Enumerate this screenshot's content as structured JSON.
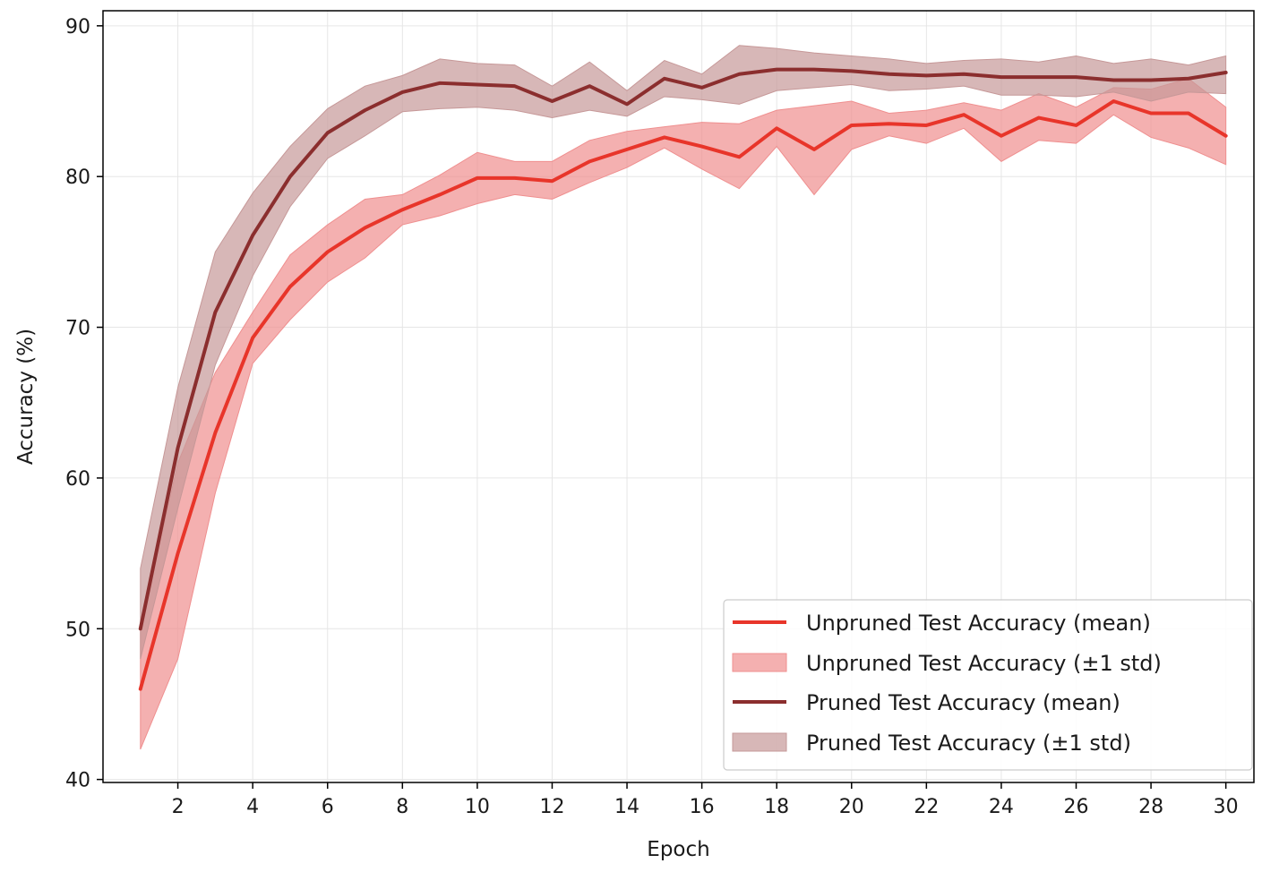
{
  "chart_data": {
    "type": "line",
    "title": "",
    "xlabel": "Epoch",
    "ylabel": "Accuracy (%)",
    "xlim": [
      0.0,
      30.75
    ],
    "ylim": [
      39.8,
      91.0
    ],
    "x_ticks": [
      2,
      4,
      6,
      8,
      10,
      12,
      14,
      16,
      18,
      20,
      22,
      24,
      26,
      28,
      30
    ],
    "y_ticks": [
      40,
      50,
      60,
      70,
      80,
      90
    ],
    "grid": true,
    "legend_position": "lower-right",
    "x": [
      1,
      2,
      3,
      4,
      5,
      6,
      7,
      8,
      9,
      10,
      11,
      12,
      13,
      14,
      15,
      16,
      17,
      18,
      19,
      20,
      21,
      22,
      23,
      24,
      25,
      26,
      27,
      28,
      29,
      30
    ],
    "series": [
      {
        "name": "Unpruned Test Accuracy (mean)",
        "band_name": "Unpruned Test Accuracy (±1 std)",
        "color": "#e8352a",
        "band_color": "#ef8f8f",
        "mean": [
          46.0,
          55.0,
          63.0,
          69.3,
          72.7,
          75.0,
          76.6,
          77.8,
          78.8,
          79.9,
          79.9,
          79.7,
          81.0,
          81.8,
          82.6,
          82.0,
          81.3,
          83.2,
          81.8,
          83.4,
          83.5,
          83.4,
          84.1,
          82.7,
          83.9,
          83.4,
          85.0,
          84.2,
          84.2,
          82.7
        ],
        "upper": [
          50.0,
          61.0,
          67.0,
          71.0,
          74.8,
          76.8,
          78.5,
          78.8,
          80.1,
          81.6,
          81.0,
          81.0,
          82.4,
          83.0,
          83.3,
          83.6,
          83.5,
          84.4,
          84.7,
          85.0,
          84.2,
          84.4,
          84.9,
          84.4,
          85.5,
          84.6,
          85.9,
          85.8,
          86.5,
          84.6
        ],
        "lower": [
          42.0,
          48.0,
          59.0,
          67.6,
          70.5,
          73.0,
          74.6,
          76.8,
          77.4,
          78.2,
          78.8,
          78.5,
          79.6,
          80.6,
          81.9,
          80.5,
          79.2,
          82.0,
          78.8,
          81.8,
          82.7,
          82.2,
          83.2,
          81.0,
          82.4,
          82.2,
          84.1,
          82.6,
          81.9,
          80.8
        ]
      },
      {
        "name": "Pruned Test Accuracy (mean)",
        "band_name": "Pruned Test Accuracy (±1 std)",
        "color": "#8b2e2e",
        "band_color": "#c69898",
        "mean": [
          50.0,
          62.0,
          71.0,
          76.1,
          80.0,
          82.9,
          84.4,
          85.6,
          86.2,
          86.1,
          86.0,
          85.0,
          86.0,
          84.8,
          86.5,
          85.9,
          86.8,
          87.1,
          87.1,
          87.0,
          86.8,
          86.7,
          86.8,
          86.6,
          86.6,
          86.6,
          86.4,
          86.4,
          86.5,
          86.9
        ],
        "upper": [
          54.0,
          66.0,
          75.0,
          78.9,
          82.0,
          84.5,
          86.0,
          86.7,
          87.8,
          87.5,
          87.4,
          86.0,
          87.6,
          85.7,
          87.7,
          86.8,
          88.7,
          88.5,
          88.2,
          88.0,
          87.8,
          87.5,
          87.7,
          87.8,
          87.6,
          88.0,
          87.5,
          87.8,
          87.4,
          88.0
        ],
        "lower": [
          48.0,
          58.0,
          67.5,
          73.4,
          78.0,
          81.2,
          82.7,
          84.3,
          84.5,
          84.6,
          84.4,
          83.9,
          84.4,
          84.0,
          85.3,
          85.1,
          84.8,
          85.7,
          85.9,
          86.1,
          85.7,
          85.8,
          86.0,
          85.4,
          85.4,
          85.3,
          85.6,
          85.0,
          85.6,
          85.5
        ]
      }
    ]
  }
}
